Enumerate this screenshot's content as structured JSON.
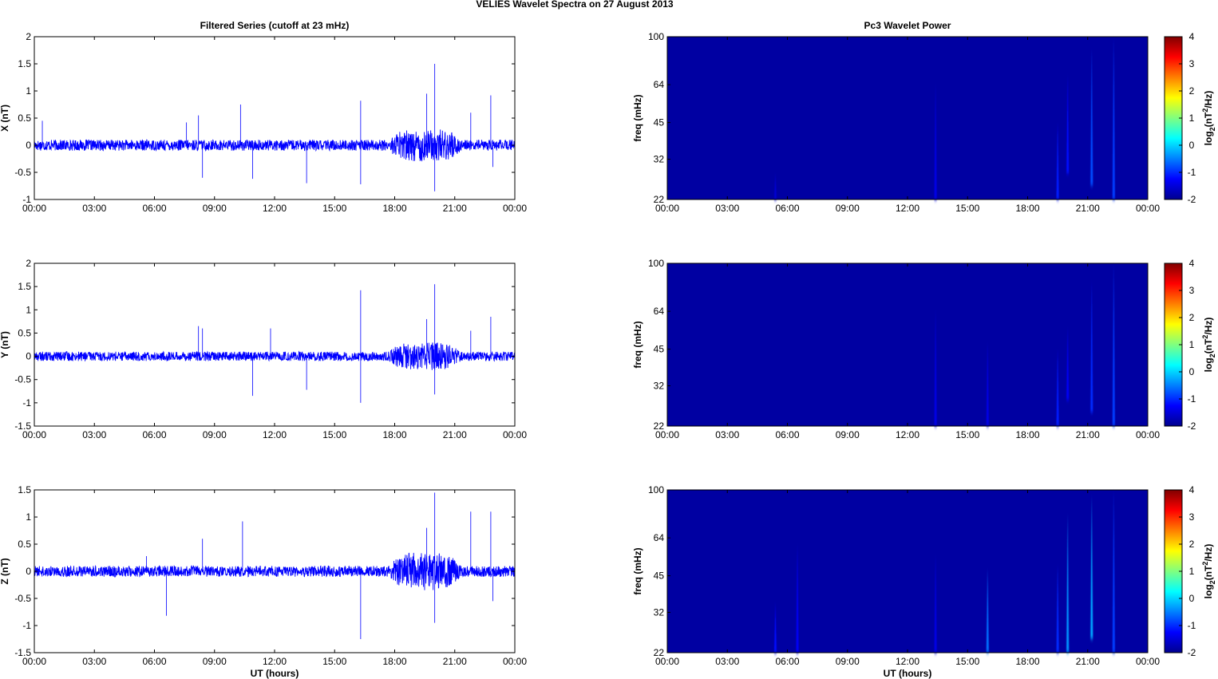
{
  "figure": {
    "title": "VELIES Wavelet Spectra on 27 August    2013"
  },
  "chart_data": [
    {
      "type": "line",
      "title": "Filtered Series (cutoff at 23 mHz)",
      "xlabel": "",
      "ylabel": "X (nT)",
      "xticks": [
        "00:00",
        "03:00",
        "06:00",
        "09:00",
        "12:00",
        "15:00",
        "18:00",
        "21:00",
        "00:00"
      ],
      "xlim_hours": [
        0,
        24
      ],
      "ylim": [
        -1,
        2
      ],
      "yticks": [
        "-1",
        "-0.5",
        "0",
        "0.5",
        "1",
        "1.5",
        "2"
      ],
      "yticks_values": [
        -1,
        -0.5,
        0,
        0.5,
        1,
        1.5,
        2
      ],
      "color": "#0000ff",
      "baseline_noise_amplitude": 0.1,
      "active_interval_hours": [
        18,
        21
      ],
      "active_noise_amplitude": 0.3,
      "spikes": [
        {
          "t_hours": 0.4,
          "value": 0.45
        },
        {
          "t_hours": 7.6,
          "value": 0.42
        },
        {
          "t_hours": 8.2,
          "value": 0.55
        },
        {
          "t_hours": 8.4,
          "value": -0.6
        },
        {
          "t_hours": 10.3,
          "value": 0.75
        },
        {
          "t_hours": 10.9,
          "value": -0.62
        },
        {
          "t_hours": 13.6,
          "value": -0.7
        },
        {
          "t_hours": 16.3,
          "value": 0.82
        },
        {
          "t_hours": 16.3,
          "value": -0.72
        },
        {
          "t_hours": 19.6,
          "value": 0.95
        },
        {
          "t_hours": 20.0,
          "value": 1.5
        },
        {
          "t_hours": 20.0,
          "value": -0.85
        },
        {
          "t_hours": 21.8,
          "value": 0.6
        },
        {
          "t_hours": 22.8,
          "value": 0.92
        },
        {
          "t_hours": 22.9,
          "value": -0.4
        }
      ]
    },
    {
      "type": "heatmap",
      "title": "Pc3 Wavelet Power",
      "xlabel": "",
      "ylabel": "freq (mHz)",
      "xticks": [
        "00:00",
        "03:00",
        "06:00",
        "09:00",
        "12:00",
        "15:00",
        "18:00",
        "21:00",
        "00:00"
      ],
      "xlim_hours": [
        0,
        24
      ],
      "ylim": [
        22,
        100
      ],
      "yscale": "log",
      "yticks": [
        "22",
        "32",
        "45",
        "64",
        "100"
      ],
      "yticks_values": [
        22,
        32,
        45,
        64,
        100
      ],
      "colorbar": {
        "label": "log2(nT2/Hz)",
        "range": [
          -2,
          4
        ],
        "ticks": [
          "-2",
          "-1",
          "0",
          "1",
          "2",
          "3",
          "4"
        ],
        "ticks_values": [
          -2,
          -1,
          0,
          1,
          2,
          3,
          4
        ],
        "colormap": "jet"
      },
      "background_level": -1.8,
      "events": [
        {
          "t_hours": 5.4,
          "f_low": 22,
          "f_high": 28,
          "level": -1.5
        },
        {
          "t_hours": 13.4,
          "f_low": 22,
          "f_high": 65,
          "level": -1.4
        },
        {
          "t_hours": 19.5,
          "f_low": 22,
          "f_high": 45,
          "level": -1.1
        },
        {
          "t_hours": 20.0,
          "f_low": 28,
          "f_high": 70,
          "level": -1.2
        },
        {
          "t_hours": 21.2,
          "f_low": 25,
          "f_high": 90,
          "level": -0.8
        },
        {
          "t_hours": 22.3,
          "f_low": 22,
          "f_high": 100,
          "level": -0.9
        }
      ]
    },
    {
      "type": "line",
      "title": "",
      "xlabel": "",
      "ylabel": "Y (nT)",
      "xticks": [
        "00:00",
        "03:00",
        "06:00",
        "09:00",
        "12:00",
        "15:00",
        "18:00",
        "21:00",
        "00:00"
      ],
      "xlim_hours": [
        0,
        24
      ],
      "ylim": [
        -1.5,
        2
      ],
      "yticks": [
        "-1.5",
        "-1",
        "-0.5",
        "0",
        "0.5",
        "1",
        "1.5",
        "2"
      ],
      "yticks_values": [
        -1.5,
        -1,
        -0.5,
        0,
        0.5,
        1,
        1.5,
        2
      ],
      "color": "#0000ff",
      "baseline_noise_amplitude": 0.1,
      "active_interval_hours": [
        18,
        21
      ],
      "active_noise_amplitude": 0.3,
      "spikes": [
        {
          "t_hours": 8.2,
          "value": 0.65
        },
        {
          "t_hours": 8.4,
          "value": 0.6
        },
        {
          "t_hours": 10.9,
          "value": -0.85
        },
        {
          "t_hours": 11.8,
          "value": 0.6
        },
        {
          "t_hours": 13.6,
          "value": -0.72
        },
        {
          "t_hours": 16.3,
          "value": 1.42
        },
        {
          "t_hours": 16.3,
          "value": -1.0
        },
        {
          "t_hours": 19.6,
          "value": 0.8
        },
        {
          "t_hours": 20.0,
          "value": 1.55
        },
        {
          "t_hours": 20.0,
          "value": -0.82
        },
        {
          "t_hours": 21.8,
          "value": 0.55
        },
        {
          "t_hours": 22.8,
          "value": 0.85
        }
      ]
    },
    {
      "type": "heatmap",
      "title": "",
      "xlabel": "",
      "ylabel": "freq (mHz)",
      "xticks": [
        "00:00",
        "03:00",
        "06:00",
        "09:00",
        "12:00",
        "15:00",
        "18:00",
        "21:00",
        "00:00"
      ],
      "xlim_hours": [
        0,
        24
      ],
      "ylim": [
        22,
        100
      ],
      "yscale": "log",
      "yticks": [
        "22",
        "32",
        "45",
        "64",
        "100"
      ],
      "yticks_values": [
        22,
        32,
        45,
        64,
        100
      ],
      "colorbar": {
        "label": "log2(nT2/Hz)",
        "range": [
          -2,
          4
        ],
        "ticks": [
          "-2",
          "-1",
          "0",
          "1",
          "2",
          "3",
          "4"
        ],
        "ticks_values": [
          -2,
          -1,
          0,
          1,
          2,
          3,
          4
        ],
        "colormap": "jet"
      },
      "background_level": -1.8,
      "events": [
        {
          "t_hours": 13.4,
          "f_low": 22,
          "f_high": 65,
          "level": -1.4
        },
        {
          "t_hours": 16.0,
          "f_low": 22,
          "f_high": 48,
          "level": -1.4
        },
        {
          "t_hours": 19.5,
          "f_low": 22,
          "f_high": 45,
          "level": -1.1
        },
        {
          "t_hours": 20.0,
          "f_low": 28,
          "f_high": 55,
          "level": -1.3
        },
        {
          "t_hours": 21.2,
          "f_low": 25,
          "f_high": 85,
          "level": -1.0
        },
        {
          "t_hours": 22.3,
          "f_low": 22,
          "f_high": 100,
          "level": -0.9
        }
      ]
    },
    {
      "type": "line",
      "title": "",
      "xlabel": "UT (hours)",
      "ylabel": "Z (nT)",
      "xticks": [
        "00:00",
        "03:00",
        "06:00",
        "09:00",
        "12:00",
        "15:00",
        "18:00",
        "21:00",
        "00:00"
      ],
      "xlim_hours": [
        0,
        24
      ],
      "ylim": [
        -1.5,
        1.5
      ],
      "yticks": [
        "-1.5",
        "-1",
        "-0.5",
        "0",
        "0.5",
        "1",
        "1.5"
      ],
      "yticks_values": [
        -1.5,
        -1,
        -0.5,
        0,
        0.5,
        1,
        1.5
      ],
      "color": "#0000ff",
      "baseline_noise_amplitude": 0.1,
      "active_interval_hours": [
        18,
        21
      ],
      "active_noise_amplitude": 0.35,
      "spikes": [
        {
          "t_hours": 5.6,
          "value": 0.28
        },
        {
          "t_hours": 6.6,
          "value": -0.82
        },
        {
          "t_hours": 8.4,
          "value": 0.6
        },
        {
          "t_hours": 10.4,
          "value": 0.92
        },
        {
          "t_hours": 16.3,
          "value": -1.25
        },
        {
          "t_hours": 19.6,
          "value": 0.8
        },
        {
          "t_hours": 20.0,
          "value": 1.45
        },
        {
          "t_hours": 20.0,
          "value": -0.95
        },
        {
          "t_hours": 21.8,
          "value": 1.1
        },
        {
          "t_hours": 22.8,
          "value": 1.1
        },
        {
          "t_hours": 22.9,
          "value": -0.55
        }
      ]
    },
    {
      "type": "heatmap",
      "title": "",
      "xlabel": "UT (hours)",
      "ylabel": "freq (mHz)",
      "xticks": [
        "00:00",
        "03:00",
        "06:00",
        "09:00",
        "12:00",
        "15:00",
        "18:00",
        "21:00",
        "00:00"
      ],
      "xlim_hours": [
        0,
        24
      ],
      "ylim": [
        22,
        100
      ],
      "yscale": "log",
      "yticks": [
        "22",
        "32",
        "45",
        "64",
        "100"
      ],
      "yticks_values": [
        22,
        32,
        45,
        64,
        100
      ],
      "colorbar": {
        "label": "log2(nT2/Hz)",
        "range": [
          -2,
          4
        ],
        "ticks": [
          "-2",
          "-1",
          "0",
          "1",
          "2",
          "3",
          "4"
        ],
        "ticks_values": [
          -2,
          -1,
          0,
          1,
          2,
          3,
          4
        ],
        "colormap": "jet"
      },
      "background_level": -1.8,
      "events": [
        {
          "t_hours": 5.4,
          "f_low": 22,
          "f_high": 35,
          "level": -1.2
        },
        {
          "t_hours": 6.5,
          "f_low": 22,
          "f_high": 60,
          "level": -1.3
        },
        {
          "t_hours": 13.4,
          "f_low": 22,
          "f_high": 55,
          "level": -1.4
        },
        {
          "t_hours": 16.0,
          "f_low": 22,
          "f_high": 48,
          "level": -0.6
        },
        {
          "t_hours": 19.5,
          "f_low": 22,
          "f_high": 50,
          "level": -1.0
        },
        {
          "t_hours": 20.0,
          "f_low": 22,
          "f_high": 80,
          "level": -0.4
        },
        {
          "t_hours": 21.2,
          "f_low": 25,
          "f_high": 95,
          "level": -0.3
        },
        {
          "t_hours": 22.3,
          "f_low": 22,
          "f_high": 100,
          "level": -0.9
        }
      ]
    }
  ]
}
